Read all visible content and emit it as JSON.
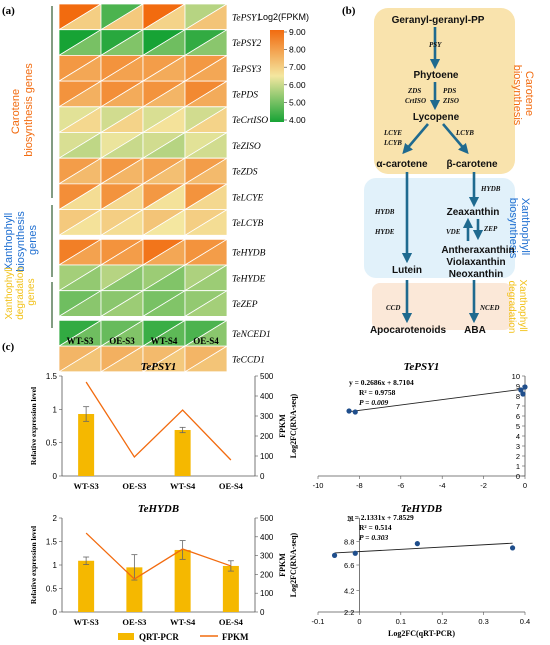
{
  "panel_labels": {
    "a": "(a)",
    "b": "(b)",
    "c": "(c)"
  },
  "heatmap": {
    "group_labels": [
      [
        "Carotene",
        "biosynthesis genes"
      ],
      [
        "Xanthophyll",
        "biosynthesis",
        "genes"
      ],
      [
        "Xanthophyll",
        "degradation",
        "genes"
      ]
    ],
    "genes": [
      "TePSY1",
      "TePSY2",
      "TePSY3",
      "TePDS",
      "TeCrtISO",
      "TeZISO",
      "TeZDS",
      "TeLCYE",
      "TeLCYB",
      "TeHYDB",
      "TeHYDE",
      "TeZEP",
      "TeNCED1",
      "TeCCD1"
    ],
    "columns": [
      "WT-S3",
      "OE-S3",
      "WT-S4",
      "OE-S4"
    ],
    "legend_title": "Log2(FPKM)",
    "legend_ticks": [
      "9.00",
      "8.00",
      "7.00",
      "6.00",
      "5.00",
      "4.00"
    ],
    "colors": {
      "high": "#f26b0f",
      "mid": "#f4e7a0",
      "low": "#17a335"
    },
    "upper_values": [
      [
        9.0,
        4.6,
        9.0,
        5.8
      ],
      [
        4.0,
        4.2,
        4.0,
        4.3
      ],
      [
        8.1,
        8.2,
        8.0,
        8.1
      ],
      [
        8.2,
        8.3,
        8.2,
        8.4
      ],
      [
        6.3,
        6.1,
        6.2,
        6.1
      ],
      [
        6.2,
        6.4,
        6.1,
        6.3
      ],
      [
        8.0,
        8.1,
        7.9,
        8.0
      ],
      [
        8.3,
        8.2,
        8.1,
        8.2
      ],
      [
        7.1,
        7.0,
        7.2,
        7.0
      ],
      [
        8.6,
        8.2,
        8.8,
        8.2
      ],
      [
        5.6,
        5.8,
        5.5,
        5.7
      ],
      [
        5.0,
        5.3,
        5.1,
        5.4
      ],
      [
        4.3,
        4.9,
        4.4,
        4.6
      ],
      [
        7.5,
        7.6,
        7.4,
        7.5
      ]
    ],
    "lower_values": [
      [
        7.0,
        7.1,
        6.9,
        7.2
      ],
      [
        5.1,
        5.2,
        5.0,
        5.3
      ],
      [
        7.8,
        7.9,
        7.7,
        7.8
      ],
      [
        7.6,
        7.7,
        7.5,
        7.7
      ],
      [
        6.8,
        6.9,
        6.6,
        6.9
      ],
      [
        5.9,
        6.0,
        5.8,
        6.1
      ],
      [
        7.4,
        7.5,
        7.3,
        7.4
      ],
      [
        6.7,
        6.8,
        6.6,
        6.8
      ],
      [
        6.6,
        6.7,
        6.5,
        6.7
      ],
      [
        7.9,
        8.0,
        7.8,
        8.0
      ],
      [
        5.4,
        5.3,
        5.2,
        5.5
      ],
      [
        5.3,
        5.5,
        5.2,
        5.6
      ],
      [
        5.0,
        5.2,
        4.8,
        5.3
      ],
      [
        7.2,
        7.3,
        7.1,
        7.2
      ]
    ]
  },
  "pathway": {
    "nodes": [
      "Geranyl-geranyl-PP",
      "Phytoene",
      "Lycopene",
      "α-carotene",
      "β-carotene",
      "Zeaxanthin",
      "Antheraxanthin",
      "Violaxanthin",
      "Neoxanthin",
      "Lutein",
      "Apocarotenoids",
      "ABA"
    ],
    "enzymes": {
      "psy": "PSY",
      "zds": "ZDS",
      "crtiso": "CrtISO",
      "pds": "PDS",
      "ziso": "ZISO",
      "lcye": "LCYE",
      "lcyb1": "LCYB",
      "lcyb2": "LCYB",
      "hydb1": "HYDB",
      "hyde": "HYDE",
      "hydb2": "HYDB",
      "vde": "VDE",
      "zep": "ZEP",
      "ccd": "CCD",
      "nced": "NCED"
    },
    "side_labels": {
      "carotene": [
        "Carotene",
        "biosynthesis"
      ],
      "xanth_bio": [
        "Xanthophyll",
        "biosynthesis"
      ],
      "xanth_deg": [
        "Xanthophyll",
        "degradation"
      ]
    }
  },
  "charts": {
    "psy1_bar": {
      "title": "TePSY1",
      "ylabel": "Relative expression level",
      "y2label": "FPKM"
    },
    "psy1_corr": {
      "title": "TePSY1",
      "ylabel": "Log2FC(RNA-seq)",
      "equation": "y = 0.2686x + 8.7104",
      "r2": "R² = 0.9758",
      "p": "P = 0.009"
    },
    "hydb_bar": {
      "title": "TeHYDB",
      "ylabel": "Relative expression level",
      "y2label": "FPKM"
    },
    "hydb_corr": {
      "title": "TeHYDB",
      "ylabel": "Log2FC(RNA-seq)",
      "xlabel": "Log2FC(qRT-PCR)",
      "equation": "y = 2.1331x + 7.8529",
      "r2": "R² = 0.514",
      "p": "P = 0.303"
    },
    "legend": {
      "bar": "QRT-PCR",
      "line": "FPKM"
    }
  },
  "chart_data": [
    {
      "type": "bar",
      "title": "TePSY1",
      "categories": [
        "WT-S3",
        "OE-S3",
        "WT-S4",
        "OE-S4"
      ],
      "ylabel": "Relative expression level",
      "ylim": [
        0,
        1.5
      ],
      "yticks": [
        0,
        0.5,
        1,
        1.5
      ],
      "y2label": "FPKM",
      "y2lim": [
        0,
        500
      ],
      "y2ticks": [
        0,
        100,
        200,
        300,
        400,
        500
      ],
      "series": [
        {
          "name": "QRT-PCR",
          "type": "bar",
          "values": [
            0.93,
            0,
            0.69,
            0
          ],
          "errors": [
            0.11,
            0,
            0.04,
            0
          ],
          "color": "#f5b800"
        },
        {
          "name": "FPKM",
          "type": "line",
          "values": [
            470,
            95,
            330,
            80
          ],
          "color": "#f26b0f"
        }
      ]
    },
    {
      "type": "scatter",
      "title": "TePSY1",
      "xlim": [
        -10,
        0
      ],
      "xticks": [
        -10,
        -8,
        -6,
        -4,
        -2,
        0
      ],
      "ylim": [
        0,
        10
      ],
      "yticks": [
        0,
        1,
        2,
        3,
        4,
        5,
        6,
        7,
        8,
        9,
        10
      ],
      "ylabel": "Log2FC(RNA-seq)",
      "points": [
        {
          "x": -8.5,
          "y": 6.5
        },
        {
          "x": -8.2,
          "y": 6.4
        },
        {
          "x": -0.2,
          "y": 8.6
        },
        {
          "x": -0.1,
          "y": 8.2
        },
        {
          "x": 0,
          "y": 8.9
        }
      ],
      "trendline": {
        "slope": 0.2686,
        "intercept": 8.7104
      }
    },
    {
      "type": "bar",
      "title": "TeHYDB",
      "categories": [
        "WT-S3",
        "OE-S3",
        "WT-S4",
        "OE-S4"
      ],
      "ylabel": "Relative expression level",
      "ylim": [
        0,
        2
      ],
      "yticks": [
        0,
        0.5,
        1,
        1.5,
        2
      ],
      "y2label": "FPKM",
      "y2lim": [
        0,
        500
      ],
      "y2ticks": [
        0,
        100,
        200,
        300,
        400,
        500
      ],
      "series": [
        {
          "name": "QRT-PCR",
          "type": "bar",
          "values": [
            1.09,
            0.95,
            1.32,
            0.98
          ],
          "errors": [
            0.08,
            0.27,
            0.2,
            0.11
          ],
          "color": "#f5b800"
        },
        {
          "name": "FPKM",
          "type": "line",
          "values": [
            420,
            175,
            335,
            245
          ],
          "color": "#f26b0f"
        }
      ]
    },
    {
      "type": "scatter",
      "title": "TeHYDB",
      "xlim": [
        -0.1,
        0.4
      ],
      "xticks": [
        -0.1,
        0,
        0.1,
        0.2,
        0.3,
        0.4
      ],
      "ylim": [
        2.2,
        11
      ],
      "yticks": [
        2.2,
        4.2,
        6.6,
        8.8,
        11
      ],
      "xlabel": "Log2FC(qRT-PCR)",
      "ylabel": "Log2FC(RNA-seq)",
      "points": [
        {
          "x": -0.06,
          "y": 7.5
        },
        {
          "x": -0.01,
          "y": 7.7
        },
        {
          "x": 0.14,
          "y": 8.6
        },
        {
          "x": 0.37,
          "y": 8.2
        }
      ],
      "trendline": {
        "slope": 2.1331,
        "intercept": 7.8529
      }
    }
  ]
}
